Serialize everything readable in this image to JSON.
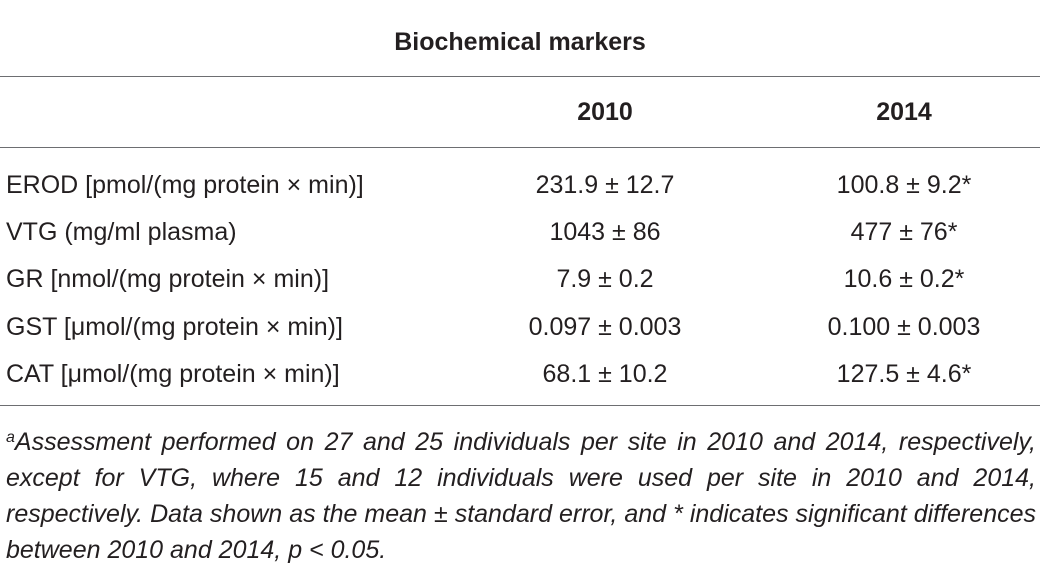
{
  "table": {
    "group_header": "Biochemical markers",
    "columns": [
      "2010",
      "2014"
    ],
    "rows": [
      {
        "label": "EROD [pmol/(mg protein × min)]",
        "v2010": "231.9 ± 12.7",
        "v2014": "100.8 ± 9.2*"
      },
      {
        "label": "VTG (mg/ml plasma)",
        "v2010": "1043 ± 86",
        "v2014": "477 ± 76*"
      },
      {
        "label": "GR [nmol/(mg protein × min)]",
        "v2010": "7.9 ± 0.2",
        "v2014": "10.6 ± 0.2*"
      },
      {
        "label": "GST [μmol/(mg protein × min)]",
        "v2010": "0.097 ± 0.003",
        "v2014": "0.100 ± 0.003"
      },
      {
        "label": "CAT [μmol/(mg protein × min)]",
        "v2010": "68.1 ± 10.2",
        "v2014": "127.5 ± 4.6*"
      }
    ]
  },
  "footnote": {
    "marker": "a",
    "text": "Assessment performed on 27 and 25 individuals per site in 2010 and 2014, respectively, except for VTG, where 15 and 12 individuals were used per site in 2010 and 2014, respectively. Data shown as the mean ± standard error, and * indicates significant differences between 2010 and 2014, p < 0.05."
  }
}
